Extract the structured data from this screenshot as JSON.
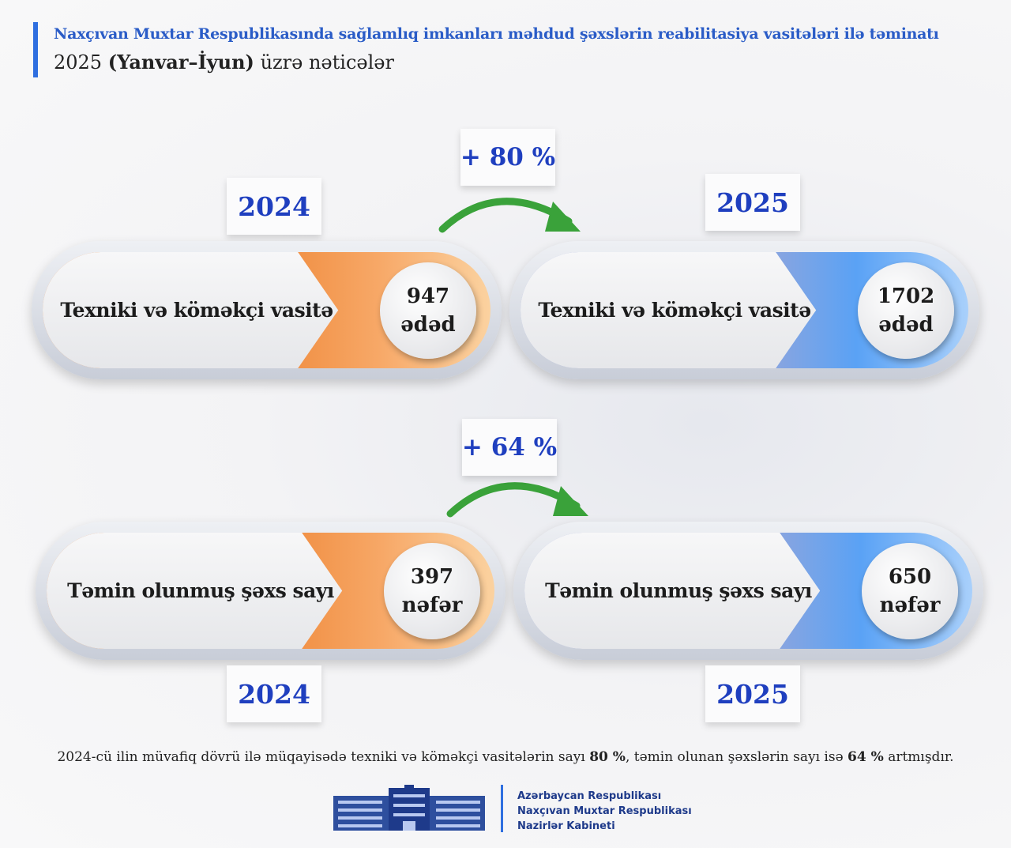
{
  "header": {
    "title": "Naxçıvan Muxtar Respublikasında sağlamlıq imkanları məhdud şəxslərin reabilitasiya vasitələri ilə təminatı",
    "subtitle": {
      "year": "2025",
      "period": "(Yanvar–İyun)",
      "rest": "üzrə nəticələr"
    }
  },
  "rows": [
    {
      "change": "+ 80 %",
      "cards": [
        {
          "year": "2024",
          "label": "Texniki və köməkçi vasitə",
          "value": "947",
          "unit": "ədəd"
        },
        {
          "year": "2025",
          "label": "Texniki və köməkçi vasitə",
          "value": "1702",
          "unit": "ədəd"
        }
      ]
    },
    {
      "change": "+ 64 %",
      "cards": [
        {
          "year": "2024",
          "label": "Təmin olunmuş şəxs sayı",
          "value": "397",
          "unit": "nəfər"
        },
        {
          "year": "2025",
          "label": "Təmin olunmuş şəxs sayı",
          "value": "650",
          "unit": "nəfər"
        }
      ]
    }
  ],
  "note": {
    "part1": "2024-cü ilin müvafiq dövrü ilə müqayisədə texniki və köməkçi vasitələrin sayı",
    "bold1": "80 %",
    "part2": ", təmin olunan şəxslərin sayı isə",
    "bold2": "64 %",
    "part3": "artmışdır."
  },
  "footer": {
    "lines": [
      "Azərbaycan Respublikası",
      "Naxçıvan Muxtar Respublikası",
      "Nazirlər Kabineti"
    ]
  }
}
